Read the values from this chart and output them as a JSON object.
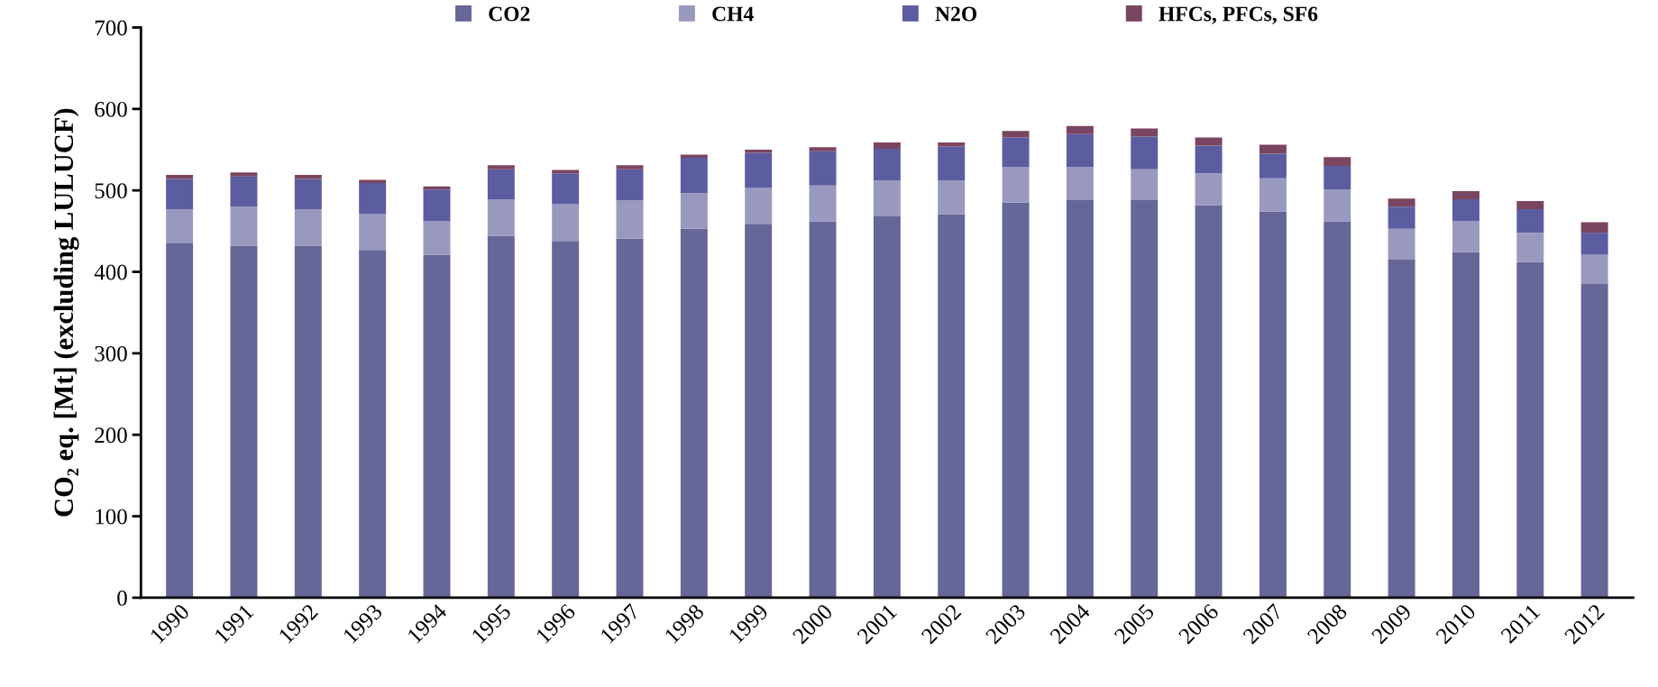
{
  "chart_data": {
    "type": "bar",
    "stacked": true,
    "ylabel": "CO₂ eq. [Mt] (excluding LULUCF)",
    "categories": [
      "1990",
      "1991",
      "1992",
      "1993",
      "1994",
      "1995",
      "1996",
      "1997",
      "1998",
      "1999",
      "2000",
      "2001",
      "2002",
      "2003",
      "2004",
      "2005",
      "2006",
      "2007",
      "2008",
      "2009",
      "2010",
      "2011",
      "2012"
    ],
    "series": [
      {
        "name": "CO2",
        "color": "#666699",
        "values": [
          435,
          432,
          432,
          427,
          421,
          444,
          438,
          441,
          453,
          459,
          462,
          468,
          471,
          485,
          488,
          488,
          482,
          474,
          462,
          415,
          424,
          412,
          385
        ]
      },
      {
        "name": "CH4",
        "color": "#9999c0",
        "values": [
          42,
          48,
          45,
          44,
          41,
          45,
          45,
          47,
          44,
          44,
          44,
          44,
          41,
          44,
          41,
          38,
          39,
          41,
          39,
          38,
          38,
          36,
          36
        ]
      },
      {
        "name": "N2O",
        "color": "#5c5ca0",
        "values": [
          37,
          37,
          37,
          38,
          39,
          37,
          38,
          38,
          43,
          43,
          42,
          39,
          42,
          36,
          40,
          40,
          34,
          30,
          29,
          27,
          27,
          29,
          27
        ]
      },
      {
        "name": "HFCs, PFCs, SF6",
        "color": "#7a4560",
        "values": [
          5,
          5,
          5,
          4,
          4,
          5,
          4,
          5,
          4,
          4,
          5,
          8,
          5,
          8,
          10,
          10,
          10,
          11,
          11,
          10,
          10,
          10,
          13
        ]
      }
    ],
    "ylim": [
      0,
      700
    ],
    "yticks": [
      0,
      100,
      200,
      300,
      400,
      500,
      600,
      700
    ],
    "grid": false,
    "legend": "top"
  }
}
